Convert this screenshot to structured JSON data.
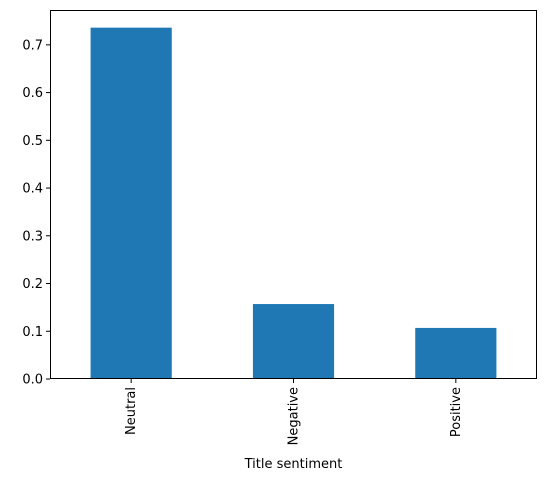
{
  "chart_data": {
    "type": "bar",
    "title": "",
    "xlabel": "Title sentiment",
    "ylabel": "",
    "categories": [
      "Neutral",
      "Negative",
      "Positive"
    ],
    "values": [
      0.736,
      0.157,
      0.107
    ],
    "ylim": [
      0,
      0.773
    ],
    "yticks": [
      0.0,
      0.1,
      0.2,
      0.3,
      0.4,
      0.5,
      0.6,
      0.7
    ],
    "ytick_labels": [
      "0.0",
      "0.1",
      "0.2",
      "0.3",
      "0.4",
      "0.5",
      "0.6",
      "0.7"
    ],
    "grid": false,
    "legend": "none",
    "bar_color": "#1f77b4",
    "x_tick_rotation": "vertical"
  }
}
